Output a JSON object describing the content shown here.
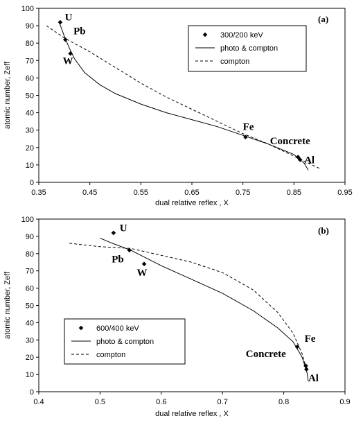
{
  "chart_data": [
    {
      "type": "scatter",
      "panel_label": "(a)",
      "xlabel": "dual relative reflex , X",
      "ylabel": "atomic number, Zeff",
      "xlim": [
        0.35,
        0.95
      ],
      "ylim": [
        0,
        100
      ],
      "xticks": [
        "0.35",
        "0.45",
        "0.55",
        "0.65",
        "0.75",
        "0.85",
        "0.95"
      ],
      "yticks": [
        "0",
        "10",
        "20",
        "30",
        "40",
        "50",
        "60",
        "70",
        "80",
        "90",
        "100"
      ],
      "legend_position": "top-right",
      "series": [
        {
          "name": "300/200 keV",
          "style": "markers",
          "points": [
            [
              0.392,
              92
            ],
            [
              0.402,
              82
            ],
            [
              0.412,
              74
            ],
            [
              0.755,
              26
            ],
            [
              0.858,
              14.5
            ],
            [
              0.862,
              13
            ]
          ]
        },
        {
          "name": "photo & compton",
          "style": "solid",
          "points": [
            [
              0.39,
              92
            ],
            [
              0.4,
              84
            ],
            [
              0.41,
              77
            ],
            [
              0.42,
              71
            ],
            [
              0.44,
              63
            ],
            [
              0.47,
              56
            ],
            [
              0.5,
              51
            ],
            [
              0.55,
              45
            ],
            [
              0.6,
              40
            ],
            [
              0.65,
              36
            ],
            [
              0.7,
              32
            ],
            [
              0.75,
              27
            ],
            [
              0.8,
              22
            ],
            [
              0.85,
              16
            ],
            [
              0.87,
              11
            ],
            [
              0.878,
              7
            ]
          ]
        },
        {
          "name": "compton",
          "style": "dashed",
          "points": [
            [
              0.365,
              90
            ],
            [
              0.4,
              83
            ],
            [
              0.45,
              75
            ],
            [
              0.5,
              66
            ],
            [
              0.55,
              57
            ],
            [
              0.6,
              49
            ],
            [
              0.65,
              42
            ],
            [
              0.7,
              35
            ],
            [
              0.75,
              28
            ],
            [
              0.8,
              22
            ],
            [
              0.85,
              15
            ],
            [
              0.9,
              8
            ]
          ]
        }
      ],
      "annotations": [
        {
          "text": "U",
          "x": 0.401,
          "y": 93
        },
        {
          "text": "Pb",
          "x": 0.418,
          "y": 85
        },
        {
          "text": "W",
          "x": 0.397,
          "y": 68
        },
        {
          "text": "Fe",
          "x": 0.75,
          "y": 30
        },
        {
          "text": "Concrete",
          "x": 0.803,
          "y": 22
        },
        {
          "text": "Al",
          "x": 0.87,
          "y": 11
        }
      ]
    },
    {
      "type": "scatter",
      "panel_label": "(b)",
      "xlabel": "dual relative reflex , X",
      "ylabel": "atomic number, Zeff",
      "xlim": [
        0.4,
        0.9
      ],
      "ylim": [
        0,
        100
      ],
      "xticks": [
        "0.4",
        "0.5",
        "0.6",
        "0.7",
        "0.8",
        "0.9"
      ],
      "yticks": [
        "0",
        "10",
        "20",
        "30",
        "40",
        "50",
        "60",
        "70",
        "80",
        "90",
        "100"
      ],
      "legend_position": "bottom-left",
      "series": [
        {
          "name": "600/400 keV",
          "style": "markers",
          "points": [
            [
              0.522,
              92
            ],
            [
              0.548,
              82
            ],
            [
              0.572,
              74
            ],
            [
              0.822,
              26
            ],
            [
              0.836,
              15
            ],
            [
              0.837,
              13
            ]
          ]
        },
        {
          "name": "photo & compton",
          "style": "solid",
          "points": [
            [
              0.5,
              89
            ],
            [
              0.52,
              86
            ],
            [
              0.55,
              82
            ],
            [
              0.6,
              73
            ],
            [
              0.65,
              65
            ],
            [
              0.7,
              57
            ],
            [
              0.75,
              47
            ],
            [
              0.79,
              37
            ],
            [
              0.815,
              29
            ],
            [
              0.83,
              20
            ],
            [
              0.838,
              11
            ],
            [
              0.84,
              6
            ]
          ]
        },
        {
          "name": "compton",
          "style": "dashed",
          "points": [
            [
              0.45,
              86
            ],
            [
              0.5,
              84
            ],
            [
              0.55,
              83
            ],
            [
              0.6,
              79
            ],
            [
              0.65,
              75
            ],
            [
              0.7,
              69
            ],
            [
              0.75,
              59
            ],
            [
              0.79,
              46
            ],
            [
              0.815,
              34
            ],
            [
              0.83,
              22
            ],
            [
              0.838,
              12
            ]
          ]
        }
      ],
      "annotations": [
        {
          "text": "U",
          "x": 0.532,
          "y": 93
        },
        {
          "text": "Pb",
          "x": 0.519,
          "y": 75
        },
        {
          "text": "W",
          "x": 0.56,
          "y": 67
        },
        {
          "text": "Fe",
          "x": 0.834,
          "y": 29
        },
        {
          "text": "Concrete",
          "x": 0.738,
          "y": 20
        },
        {
          "text": "Al",
          "x": 0.84,
          "y": 6
        }
      ]
    }
  ]
}
